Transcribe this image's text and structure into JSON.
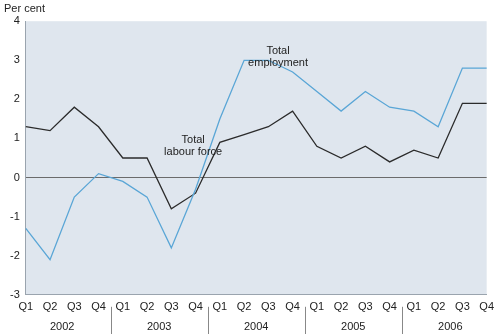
{
  "chart_data": {
    "type": "line",
    "y_label": "Per cent",
    "categories": [
      "Q1",
      "Q2",
      "Q3",
      "Q4",
      "Q1",
      "Q2",
      "Q3",
      "Q4",
      "Q1",
      "Q2",
      "Q3",
      "Q4",
      "Q1",
      "Q2",
      "Q3",
      "Q4",
      "Q1",
      "Q2",
      "Q3",
      "Q4"
    ],
    "groups": [
      "2002",
      "2003",
      "2004",
      "2005",
      "2006"
    ],
    "series": [
      {
        "name": "Total employment",
        "color": "#5aa6d6",
        "values": [
          -1.3,
          -2.1,
          -0.5,
          0.1,
          -0.1,
          -0.5,
          -1.8,
          -0.3,
          1.5,
          3.0,
          3.0,
          2.7,
          2.2,
          1.7,
          2.2,
          1.8,
          1.7,
          1.3,
          2.8,
          2.8
        ]
      },
      {
        "name": "Total labour force",
        "color": "#2b2b2b",
        "values": [
          1.3,
          1.2,
          1.8,
          1.3,
          0.5,
          0.5,
          -0.8,
          -0.4,
          0.9,
          1.1,
          1.3,
          1.7,
          0.8,
          0.5,
          0.8,
          0.4,
          0.7,
          0.5,
          1.9,
          1.9
        ]
      }
    ],
    "ylim": [
      -3,
      4
    ],
    "yticks": [
      -3,
      -2,
      -1,
      0,
      1,
      2,
      3,
      4
    ],
    "grid": false
  }
}
